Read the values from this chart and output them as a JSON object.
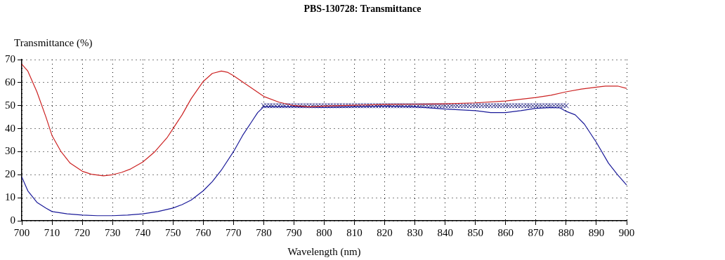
{
  "chart_data": {
    "type": "line",
    "title": "PBS-130728: Transmittance",
    "xlabel": "Wavelength (nm)",
    "ylabel": "Transmittance (%)",
    "xlim": [
      700,
      900
    ],
    "xticks": [
      700,
      710,
      720,
      730,
      740,
      750,
      760,
      770,
      780,
      790,
      800,
      810,
      820,
      830,
      840,
      850,
      860,
      870,
      880,
      890,
      900
    ],
    "ylim": [
      0,
      70
    ],
    "yticks": [
      0,
      10,
      20,
      30,
      40,
      50,
      60,
      70
    ],
    "grid": true,
    "legend": false,
    "marker": "none",
    "line_style": "solid",
    "series": [
      {
        "color": "#cc2222",
        "x": [
          700,
          702,
          705,
          708,
          710,
          713,
          716,
          720,
          723,
          727,
          730,
          733,
          736,
          740,
          744,
          748,
          750,
          753,
          756,
          760,
          763,
          766,
          768,
          770,
          775,
          780,
          785,
          790,
          795,
          800,
          810,
          820,
          830,
          840,
          850,
          860,
          870,
          875,
          880,
          885,
          890,
          893,
          897,
          900
        ],
        "values": [
          68,
          65,
          56,
          45,
          37,
          30,
          25,
          21.5,
          20.2,
          19.5,
          20,
          21,
          22.5,
          25.5,
          30,
          36,
          40,
          46,
          53,
          60.5,
          64,
          65,
          64.5,
          63,
          58.5,
          54,
          51.5,
          50,
          49.5,
          49.8,
          50.2,
          50.5,
          50.6,
          50.8,
          51.2,
          52,
          53.5,
          54.5,
          56,
          57.2,
          58,
          58.5,
          58.5,
          57.5
        ]
      },
      {
        "color": "#1a1a99",
        "x": [
          700,
          702,
          705,
          708,
          710,
          715,
          720,
          725,
          730,
          735,
          740,
          745,
          750,
          753,
          756,
          760,
          763,
          766,
          770,
          773,
          776,
          778,
          780,
          785,
          790,
          800,
          810,
          820,
          830,
          840,
          850,
          855,
          860,
          865,
          870,
          875,
          878,
          880,
          883,
          886,
          890,
          894,
          897,
          900
        ],
        "values": [
          19,
          13,
          8,
          5.5,
          4,
          3,
          2.5,
          2.2,
          2.2,
          2.5,
          3,
          4,
          5.5,
          7,
          9,
          13,
          17,
          22,
          30,
          37,
          43,
          47,
          49.5,
          49.5,
          49.5,
          49.2,
          49.5,
          49.8,
          49.5,
          48.5,
          47.8,
          47,
          47,
          47.8,
          48.8,
          49.2,
          49,
          47.5,
          46,
          42,
          34,
          25,
          20,
          15.5
        ]
      },
      {
        "type": "scatter",
        "marker": "cross",
        "color": "#2a2a8a",
        "x": [
          780,
          781,
          782,
          783,
          784,
          785,
          786,
          787,
          788,
          789,
          790,
          791,
          792,
          793,
          794,
          795,
          796,
          797,
          798,
          799,
          800,
          801,
          802,
          803,
          804,
          805,
          806,
          807,
          808,
          809,
          810,
          811,
          812,
          813,
          814,
          815,
          816,
          817,
          818,
          819,
          820,
          821,
          822,
          823,
          824,
          825,
          826,
          827,
          828,
          829,
          830,
          831,
          832,
          833,
          834,
          835,
          836,
          837,
          838,
          839,
          840,
          841,
          842,
          843,
          844,
          845,
          846,
          847,
          848,
          849,
          850,
          851,
          852,
          853,
          854,
          855,
          856,
          857,
          858,
          859,
          860,
          861,
          862,
          863,
          864,
          865,
          866,
          867,
          868,
          869,
          870,
          871,
          872,
          873,
          874,
          875,
          876,
          877,
          878,
          879,
          880
        ],
        "values": [
          50,
          50,
          50,
          50,
          50,
          50,
          50,
          50,
          50,
          50,
          50,
          50,
          50,
          50,
          50,
          50,
          50,
          50,
          50,
          50,
          50,
          50,
          50,
          50,
          50,
          50,
          50,
          50,
          50,
          50,
          50,
          50,
          50,
          50,
          50,
          50,
          50,
          50,
          50,
          50,
          50,
          50,
          50,
          50,
          50,
          50,
          50,
          50,
          50,
          50,
          50,
          50,
          50,
          50,
          50,
          50,
          50,
          50,
          50,
          50,
          50,
          50,
          50,
          50,
          50,
          50,
          50,
          50,
          50,
          50,
          50,
          50,
          50,
          50,
          50,
          50,
          50,
          50,
          50,
          50,
          50,
          50,
          50,
          50,
          50,
          50,
          50,
          50,
          50,
          50,
          50,
          50,
          50,
          50,
          50,
          50,
          50,
          50,
          50,
          50,
          50
        ]
      }
    ]
  }
}
